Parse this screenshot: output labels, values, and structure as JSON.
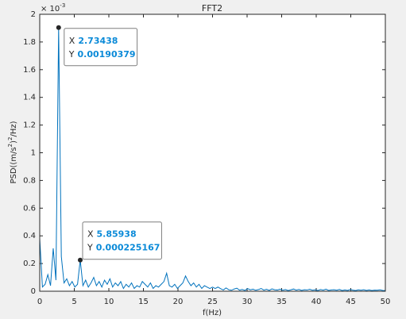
{
  "chart_data": {
    "type": "line",
    "title": "FFT2",
    "xlabel": "f(Hz)",
    "ylabel": [
      "PSD((m/s",
      "2",
      ")",
      "2",
      "/Hz)"
    ],
    "y_exponent": [
      "× 10",
      "-3"
    ],
    "xlim": [
      0,
      50
    ],
    "ylim": [
      0,
      0.002
    ],
    "xticks": [
      0,
      5,
      10,
      15,
      20,
      25,
      30,
      35,
      40,
      45,
      50
    ],
    "yticks": [
      0,
      {
        "value": 0.0002,
        "label": "0.2"
      },
      {
        "value": 0.0004,
        "label": "0.4"
      },
      {
        "value": 0.0006,
        "label": "0.6"
      },
      {
        "value": 0.0008,
        "label": "0.8"
      },
      {
        "value": 0.001,
        "label": "1"
      },
      {
        "value": 0.0012,
        "label": "1.2"
      },
      {
        "value": 0.0014,
        "label": "1.4"
      },
      {
        "value": 0.0016,
        "label": "1.6"
      },
      {
        "value": 0.0018,
        "label": "1.8"
      },
      {
        "value": 0.002,
        "label": "2"
      }
    ],
    "grid": false,
    "series": [
      {
        "color": "#0072bd",
        "x": [
          0,
          0.3906,
          0.7813,
          1.1719,
          1.5625,
          1.9531,
          2.3438,
          2.7344,
          3.125,
          3.5156,
          3.9063,
          4.2969,
          4.6875,
          5.0781,
          5.4688,
          5.8594,
          6.25,
          6.6406,
          7.0313,
          7.4219,
          7.8125,
          8.2031,
          8.5938,
          8.9844,
          9.375,
          9.7656,
          10.1563,
          10.5469,
          10.9375,
          11.3281,
          11.7188,
          12.1094,
          12.5,
          12.8906,
          13.2813,
          13.6719,
          14.0625,
          14.4531,
          14.8438,
          15.2344,
          15.625,
          16.0156,
          16.4063,
          16.7969,
          17.1875,
          17.5781,
          17.9688,
          18.3594,
          18.75,
          19.1406,
          19.5313,
          19.9219,
          20.3125,
          20.7031,
          21.0938,
          21.4844,
          21.875,
          22.2656,
          22.6563,
          23.0469,
          23.4375,
          23.8281,
          24.2188,
          24.6094,
          25,
          25.3906,
          25.7813,
          26.1719,
          26.5625,
          26.9531,
          27.3438,
          27.7344,
          28.125,
          28.5156,
          28.9063,
          29.2969,
          29.6875,
          30.0781,
          30.4688,
          30.8594,
          31.25,
          31.6406,
          32.0313,
          32.4219,
          32.8125,
          33.2031,
          33.5938,
          33.9844,
          34.375,
          34.7656,
          35.1563,
          35.5469,
          35.9375,
          36.3281,
          36.7188,
          37.1094,
          37.5,
          37.8906,
          38.2813,
          38.6719,
          39.0625,
          39.4531,
          39.8438,
          40.2344,
          40.625,
          41.0156,
          41.4063,
          41.7969,
          42.1875,
          42.5781,
          42.9688,
          43.3594,
          43.75,
          44.1406,
          44.5313,
          44.9219,
          45.3125,
          45.7031,
          46.0938,
          46.4844,
          46.875,
          47.2656,
          47.6563,
          48.0469,
          48.4375,
          48.8281,
          49.2188,
          49.6094,
          50
        ],
        "values": [
          0.00038,
          3e-05,
          5e-05,
          0.00012,
          4e-05,
          0.00031,
          8e-05,
          0.00190379,
          0.00025,
          6e-05,
          9e-05,
          4e-05,
          7e-05,
          3e-05,
          5e-05,
          0.000225167,
          4e-05,
          8e-05,
          3e-05,
          6e-05,
          0.0001,
          4e-05,
          7e-05,
          3e-05,
          8e-05,
          5e-05,
          9e-05,
          3e-05,
          6e-05,
          4e-05,
          7e-05,
          2e-05,
          5e-05,
          3e-05,
          6e-05,
          2e-05,
          4e-05,
          3e-05,
          7e-05,
          5e-05,
          3e-05,
          6e-05,
          2e-05,
          4e-05,
          3e-05,
          5e-05,
          7e-05,
          0.00013,
          4e-05,
          3e-05,
          5e-05,
          2e-05,
          4e-05,
          6e-05,
          0.00011,
          7e-05,
          4e-05,
          6e-05,
          3e-05,
          5e-05,
          2e-05,
          4e-05,
          3e-05,
          2e-05,
          3e-05,
          2e-05,
          3e-05,
          1.8e-05,
          9e-06,
          2.4e-05,
          1.1e-05,
          7e-06,
          1.6e-05,
          2.2e-05,
          8e-06,
          1.3e-05,
          6e-06,
          1.9e-05,
          1e-05,
          1.5e-05,
          7e-06,
          1.2e-05,
          2e-05,
          8e-06,
          1.4e-05,
          6e-06,
          1.7e-05,
          1.1e-05,
          9e-06,
          1.5e-05,
          7e-06,
          1.2e-05,
          5e-06,
          1e-05,
          1.6e-05,
          8e-06,
          1.3e-05,
          6e-06,
          1.1e-05,
          9e-06,
          1.4e-05,
          7e-06,
          1e-05,
          5e-06,
          1.2e-05,
          8e-06,
          1.5e-05,
          6e-06,
          9e-06,
          1.1e-05,
          7e-06,
          1.3e-05,
          5e-06,
          9e-06,
          6e-06,
          1.2e-05,
          8e-06,
          5e-06,
          1e-05,
          7e-06,
          1.1e-05,
          6e-06,
          9e-06,
          5e-06,
          8e-06,
          7e-06,
          1e-05,
          6e-06,
          4e-06
        ]
      }
    ],
    "datatips": [
      {
        "x_label": "X",
        "x": 2.73438,
        "y_label": "Y",
        "y": 0.00190379
      },
      {
        "x_label": "X",
        "x": 5.85938,
        "y_label": "Y",
        "y": 0.000225167
      }
    ]
  }
}
